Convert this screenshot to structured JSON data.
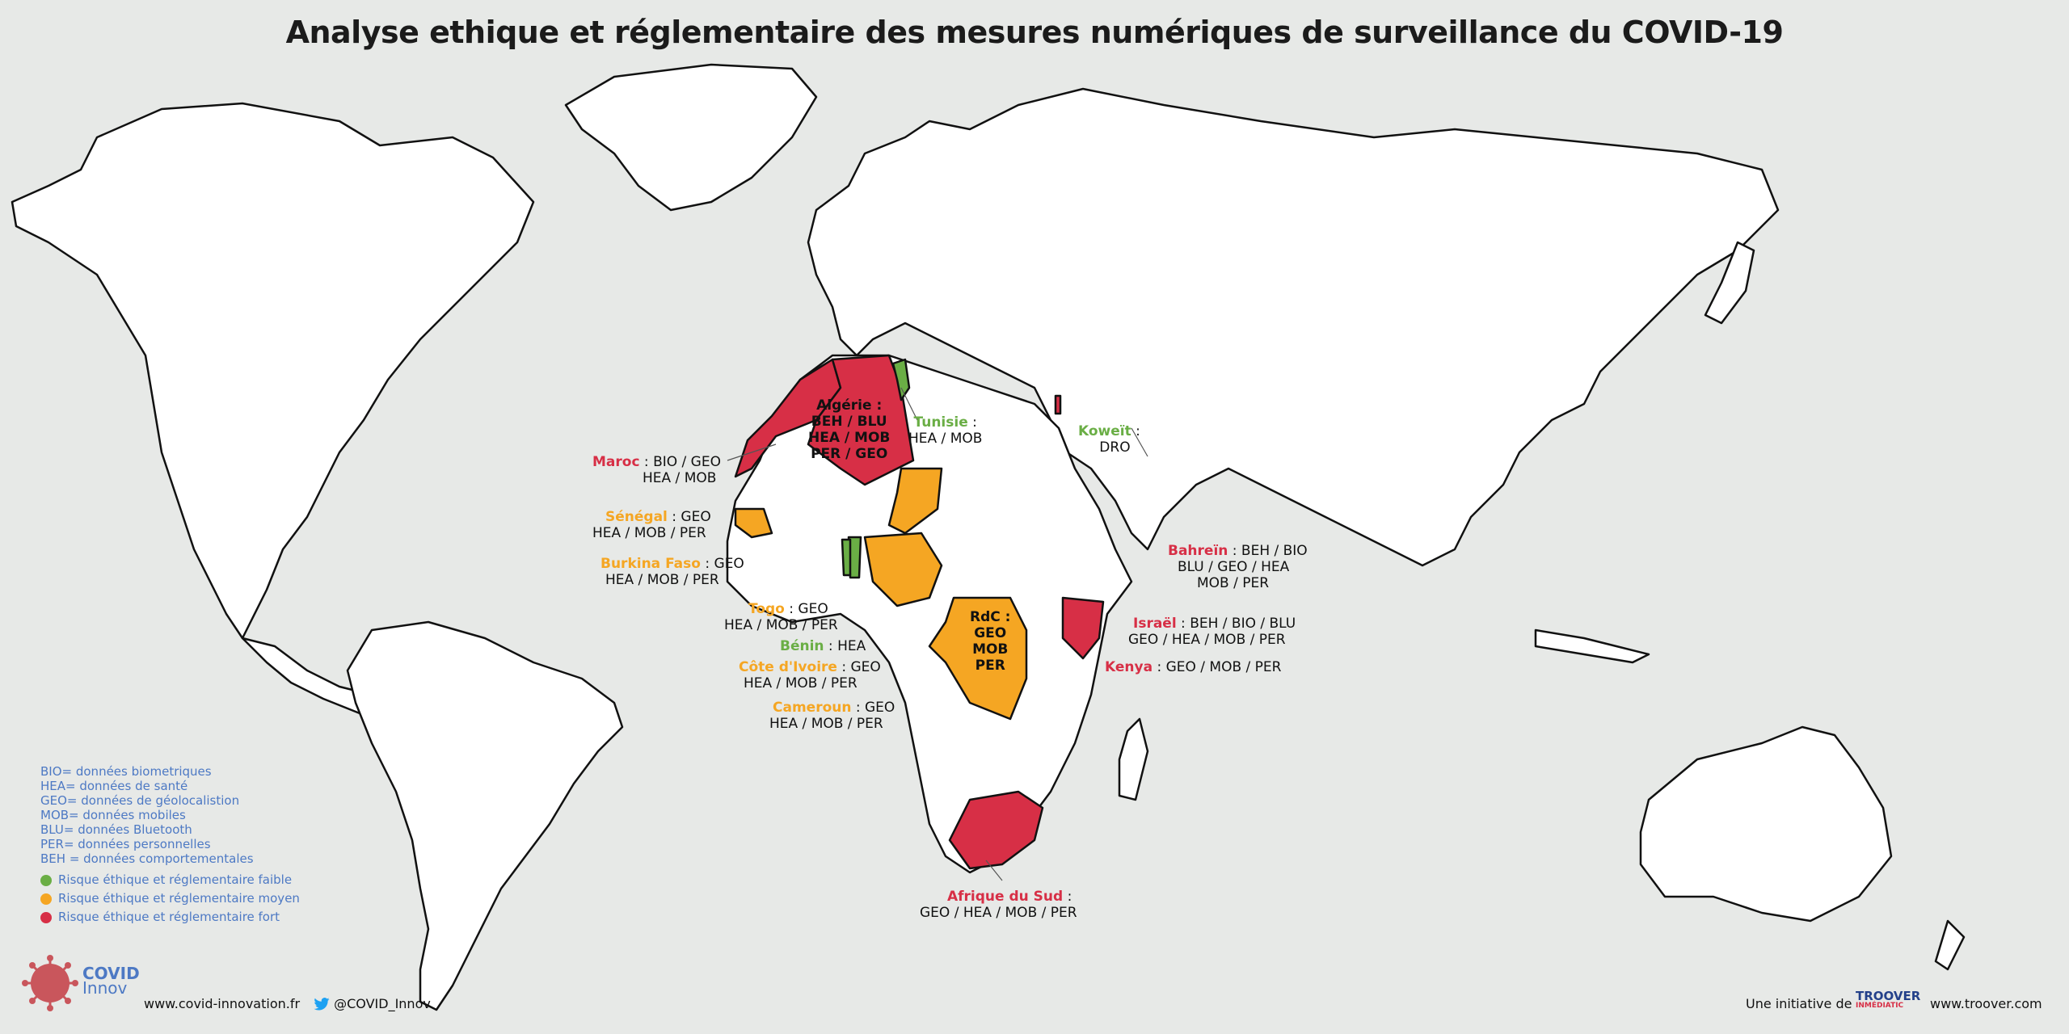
{
  "title": "Analyse ethique et réglementaire des mesures numériques de surveillance du COVID-19",
  "colors": {
    "red": "#d72f46",
    "orange": "#f5a623",
    "green": "#6aae45",
    "land": "#ffffff",
    "sea": "#e7e9e7",
    "legend_text": "#4d79c4"
  },
  "countries": [
    {
      "id": "maroc",
      "name": "Maroc",
      "risk": "red",
      "sep": " : ",
      "line1": "BIO / GEO",
      "line2": "HEA / MOB"
    },
    {
      "id": "algerie",
      "name": "Algérie :",
      "risk": "red",
      "line1": "BEH / BLU",
      "line2": "HEA / MOB",
      "line3": "PER / GEO"
    },
    {
      "id": "tunisie",
      "name": "Tunisie",
      "risk": "green",
      "sep": " :",
      "line1": "HEA / MOB"
    },
    {
      "id": "koweit",
      "name": "Koweït",
      "risk": "green",
      "sep": " :",
      "line1": "DRO"
    },
    {
      "id": "senegal",
      "name": "Sénégal",
      "risk": "orange",
      "sep": " : GEO",
      "line1": "HEA / MOB / PER"
    },
    {
      "id": "burkina",
      "name": "Burkina Faso",
      "risk": "orange",
      "sep": " : GEO",
      "line1": "HEA / MOB / PER"
    },
    {
      "id": "togo",
      "name": "Togo",
      "risk": "orange",
      "sep": " : GEO",
      "line1": "HEA / MOB / PER"
    },
    {
      "id": "benin",
      "name": "Bénin",
      "risk": "green",
      "sep": " : HEA"
    },
    {
      "id": "cotedivoire",
      "name": "Côte d'Ivoire",
      "risk": "orange",
      "sep": " : GEO",
      "line1": "HEA / MOB / PER"
    },
    {
      "id": "cameroun",
      "name": "Cameroun",
      "risk": "orange",
      "sep": " : GEO",
      "line1": "HEA / MOB / PER"
    },
    {
      "id": "rdc",
      "name": "RdC :",
      "risk": "orange",
      "line1": "GEO",
      "line2": "MOB",
      "line3": "PER"
    },
    {
      "id": "bahrein",
      "name": "Bahreïn",
      "risk": "red",
      "sep": " : BEH / BIO",
      "line1": "BLU / GEO / HEA",
      "line2": "MOB / PER"
    },
    {
      "id": "israel",
      "name": "Israël",
      "risk": "red",
      "sep": " : BEH / BIO / BLU",
      "line1": "GEO / HEA / MOB / PER"
    },
    {
      "id": "kenya",
      "name": "Kenya",
      "risk": "red",
      "sep": " : GEO / MOB / PER"
    },
    {
      "id": "afriquesud",
      "name": "Afrique du Sud",
      "risk": "red",
      "sep": " :",
      "line1": "GEO / HEA / MOB / PER"
    }
  ],
  "legend": {
    "abbreviations": [
      "BIO= données biometriques",
      "HEA= données de santé",
      "GEO= données de géolocalistion",
      "MOB= données mobiles",
      "BLU= données Bluetooth",
      "PER= données personnelles",
      "BEH = données comportementales"
    ],
    "risks": [
      {
        "label": "Risque éthique et réglementaire faible",
        "color": "#6aae45"
      },
      {
        "label": "Risque éthique et réglementaire moyen",
        "color": "#f5a623"
      },
      {
        "label": "Risque éthique et réglementaire fort",
        "color": "#d72f46"
      }
    ]
  },
  "footer": {
    "logo_line1": "COVID",
    "logo_line2": "Innov",
    "website": "www.covid-innovation.fr",
    "twitter": "@COVID_Innov",
    "initiative": "Une initiative de",
    "troover_brand": "TROOVER",
    "troover_sub": "INMÉDIATIC",
    "troover_site": "www.troover.com"
  }
}
